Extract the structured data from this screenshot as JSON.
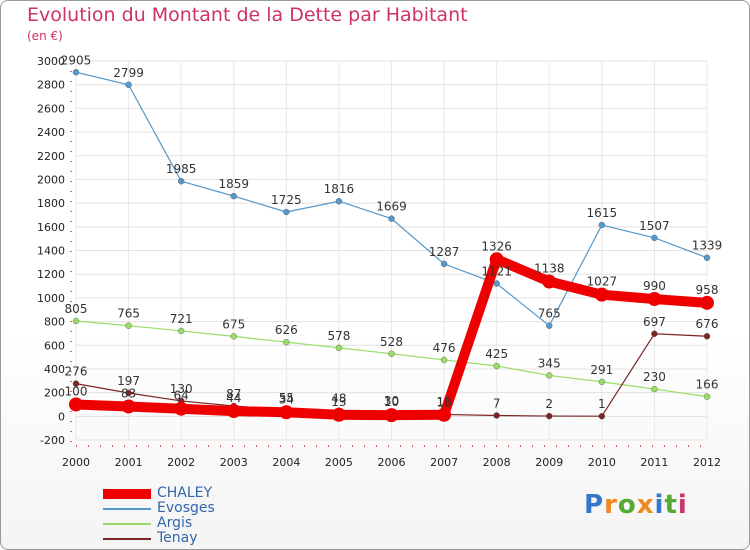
{
  "header": {
    "title": "Evolution du Montant de la Dette par Habitant",
    "unit": "(en €)"
  },
  "chart_data": {
    "type": "line",
    "title": "Evolution du Montant de la Dette par Habitant",
    "ylabel": "(en €)",
    "xlabel": "",
    "categories": [
      "2000",
      "2001",
      "2002",
      "2003",
      "2004",
      "2005",
      "2006",
      "2007",
      "2008",
      "2009",
      "2010",
      "2011",
      "2012"
    ],
    "ylim": [
      -200,
      3000
    ],
    "yticks": [
      -200,
      0,
      200,
      400,
      600,
      800,
      1000,
      1200,
      1400,
      1600,
      1800,
      2000,
      2200,
      2400,
      2600,
      2800,
      3000
    ],
    "grid": true,
    "legend_position": "bottom-left",
    "series": [
      {
        "name": "CHALEY",
        "color": "#ee0000",
        "values": [
          100,
          83,
          64,
          44,
          34,
          13,
          10,
          13,
          1326,
          1138,
          1027,
          990,
          958
        ],
        "labels": [
          "100",
          "83",
          "64",
          "44",
          "34",
          "13",
          "10",
          "13",
          "1326",
          "1138",
          "1027",
          "990",
          "958"
        ]
      },
      {
        "name": "Evosges",
        "color": "#5599cc",
        "values": [
          2905,
          2799,
          1985,
          1859,
          1725,
          1816,
          1669,
          1287,
          1121,
          765,
          1615,
          1507,
          1339
        ],
        "labels": [
          "2905",
          "2799",
          "1985",
          "1859",
          "1725",
          "1816",
          "1669",
          "1287",
          "1121",
          "765",
          "1615",
          "1507",
          "1339"
        ]
      },
      {
        "name": "Argis",
        "color": "#99dd66",
        "values": [
          805,
          765,
          721,
          675,
          626,
          578,
          528,
          476,
          425,
          345,
          291,
          230,
          166
        ],
        "labels": [
          "805",
          "765",
          "721",
          "675",
          "626",
          "578",
          "528",
          "476",
          "425",
          "345",
          "291",
          "230",
          "166"
        ]
      },
      {
        "name": "Tenay",
        "color": "#7a2525",
        "values": [
          276,
          197,
          130,
          87,
          55,
          48,
          30,
          16,
          7,
          2,
          1,
          697,
          676
        ],
        "labels": [
          "276",
          "197",
          "130",
          "87",
          "55",
          "48",
          "30",
          "16",
          "7",
          "2",
          "1",
          "697",
          "676"
        ]
      }
    ]
  },
  "logo": {
    "letters": [
      "P",
      "r",
      "o",
      "x",
      "i",
      "t",
      "i"
    ],
    "colors": [
      "#3377cc",
      "#ee8822",
      "#55aa33",
      "#ee8822",
      "#3377cc",
      "#55aa33",
      "#cc3366"
    ]
  }
}
